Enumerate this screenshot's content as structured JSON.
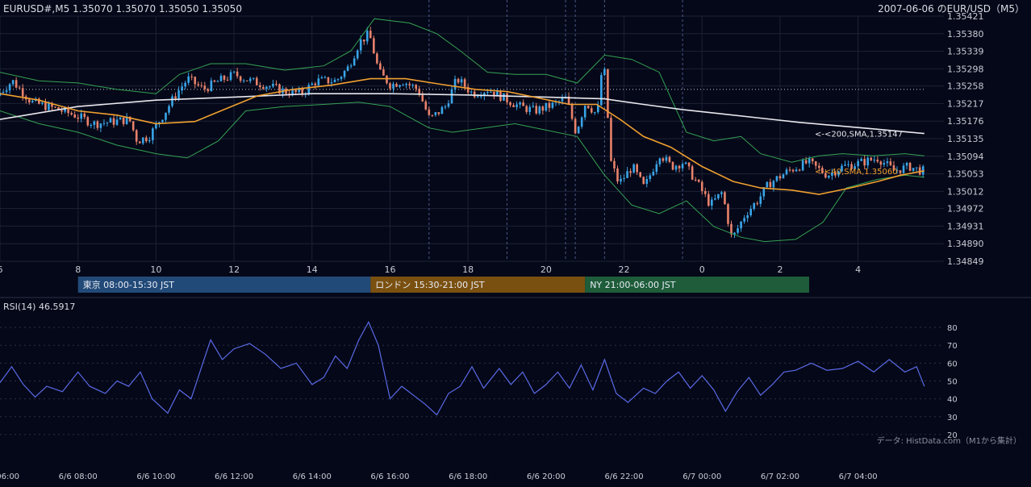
{
  "header": {
    "symbol_info": "EURUSD#,M5 1.35070 1.35070 1.35050 1.35050",
    "date_title": "2007-06-06 のEUR/USD（M5）"
  },
  "colors": {
    "background": "#050818",
    "grid": "#1c2236",
    "bull": "#3aa5e8",
    "bear": "#e8826b",
    "sma40": "#f0a030",
    "sma200": "#e8e8ee",
    "bollinger": "#35a255",
    "rsi": "#5a6ae8",
    "tokyo": "#224a78",
    "london": "#7a5010",
    "ny": "#1e5c3a"
  },
  "chart_data": [
    {
      "type": "candlestick",
      "timeframe": "M5",
      "ylim": [
        1.34849,
        1.35421
      ],
      "y_ticks": [
        "1.35421",
        "1.35380",
        "1.35339",
        "1.35298",
        "1.35258",
        "1.35217",
        "1.35176",
        "1.35135",
        "1.35094",
        "1.35053",
        "1.35012",
        "1.34972",
        "1.34931",
        "1.34890",
        "1.34849"
      ],
      "x_ticks": [
        "6",
        "8",
        "10",
        "12",
        "14",
        "16",
        "18",
        "20",
        "22",
        "0",
        "2",
        "4"
      ],
      "x_tick_hours": [
        6,
        8,
        10,
        12,
        14,
        16,
        18,
        20,
        22,
        24,
        26,
        28
      ],
      "x_range_hours": [
        6,
        29.7
      ],
      "dotted_reference_level": 1.3525,
      "vertical_markers_hours": [
        17.0,
        19.0,
        20.5,
        20.75,
        21.5,
        23.5
      ],
      "anchors": [
        [
          6.0,
          1.35235
        ],
        [
          6.4,
          1.3527
        ],
        [
          6.9,
          1.3522
        ],
        [
          7.5,
          1.35205
        ],
        [
          8.0,
          1.3519
        ],
        [
          8.5,
          1.3517
        ],
        [
          9.0,
          1.35175
        ],
        [
          9.4,
          1.3518
        ],
        [
          9.6,
          1.3513
        ],
        [
          9.9,
          1.3514
        ],
        [
          10.3,
          1.35195
        ],
        [
          10.6,
          1.3524
        ],
        [
          10.9,
          1.35275
        ],
        [
          11.3,
          1.3525
        ],
        [
          11.7,
          1.3527
        ],
        [
          12.1,
          1.35285
        ],
        [
          12.5,
          1.3527
        ],
        [
          12.9,
          1.3526
        ],
        [
          13.4,
          1.35245
        ],
        [
          13.8,
          1.3524
        ],
        [
          14.2,
          1.3527
        ],
        [
          14.7,
          1.3527
        ],
        [
          15.0,
          1.353
        ],
        [
          15.3,
          1.3536
        ],
        [
          15.55,
          1.3538
        ],
        [
          15.8,
          1.3529
        ],
        [
          16.1,
          1.3526
        ],
        [
          16.4,
          1.3527
        ],
        [
          16.8,
          1.3525
        ],
        [
          17.1,
          1.3518
        ],
        [
          17.5,
          1.3521
        ],
        [
          17.8,
          1.35275
        ],
        [
          18.2,
          1.3524
        ],
        [
          18.6,
          1.3525
        ],
        [
          19.0,
          1.3523
        ],
        [
          19.4,
          1.3521
        ],
        [
          19.8,
          1.352
        ],
        [
          20.3,
          1.35215
        ],
        [
          20.6,
          1.3523
        ],
        [
          20.85,
          1.3515
        ],
        [
          21.1,
          1.3522
        ],
        [
          21.4,
          1.3519
        ],
        [
          21.55,
          1.3533
        ],
        [
          21.75,
          1.3508
        ],
        [
          21.95,
          1.3503
        ],
        [
          22.3,
          1.3507
        ],
        [
          22.6,
          1.3502
        ],
        [
          23.0,
          1.351
        ],
        [
          23.3,
          1.3507
        ],
        [
          23.6,
          1.3508
        ],
        [
          23.9,
          1.3504
        ],
        [
          24.3,
          1.3498
        ],
        [
          24.6,
          1.3501
        ],
        [
          24.85,
          1.349
        ],
        [
          25.2,
          1.3496
        ],
        [
          25.5,
          1.3499
        ],
        [
          25.8,
          1.3503
        ],
        [
          26.3,
          1.3506
        ],
        [
          26.8,
          1.3508
        ],
        [
          27.3,
          1.3505
        ],
        [
          27.7,
          1.3507
        ],
        [
          28.2,
          1.3508
        ],
        [
          28.6,
          1.3509
        ],
        [
          29.0,
          1.3506
        ],
        [
          29.4,
          1.3507
        ],
        [
          29.7,
          1.3506
        ]
      ]
    },
    {
      "type": "line",
      "name": "<-<40,SMA,1.35060",
      "series_label": "<-<40,SMA,1.35060",
      "points": [
        [
          6.0,
          1.3524
        ],
        [
          7.0,
          1.35225
        ],
        [
          8.0,
          1.352
        ],
        [
          9.0,
          1.3519
        ],
        [
          10.0,
          1.3517
        ],
        [
          11.0,
          1.35175
        ],
        [
          11.8,
          1.35205
        ],
        [
          12.6,
          1.35235
        ],
        [
          13.5,
          1.3525
        ],
        [
          14.5,
          1.3526
        ],
        [
          15.5,
          1.35275
        ],
        [
          16.4,
          1.35275
        ],
        [
          17.3,
          1.35262
        ],
        [
          18.2,
          1.3525
        ],
        [
          19.0,
          1.35245
        ],
        [
          19.8,
          1.3523
        ],
        [
          20.6,
          1.35215
        ],
        [
          21.3,
          1.35215
        ],
        [
          21.9,
          1.3518
        ],
        [
          22.5,
          1.3514
        ],
        [
          23.2,
          1.35115
        ],
        [
          24.0,
          1.3507
        ],
        [
          24.8,
          1.35035
        ],
        [
          25.5,
          1.3502
        ],
        [
          26.3,
          1.35015
        ],
        [
          27.0,
          1.35005
        ],
        [
          27.8,
          1.3502
        ],
        [
          28.5,
          1.35035
        ],
        [
          29.1,
          1.3505
        ],
        [
          29.7,
          1.3506
        ]
      ]
    },
    {
      "type": "line",
      "name": "<-<200,SMA,1.35147",
      "series_label": "<-<200,SMA,1.35147",
      "points": [
        [
          6.0,
          1.3518
        ],
        [
          8.0,
          1.3521
        ],
        [
          10.0,
          1.35225
        ],
        [
          12.0,
          1.35232
        ],
        [
          14.0,
          1.3524
        ],
        [
          16.0,
          1.3524
        ],
        [
          18.0,
          1.35237
        ],
        [
          20.0,
          1.35232
        ],
        [
          21.5,
          1.35228
        ],
        [
          22.5,
          1.35215
        ],
        [
          23.5,
          1.35203
        ],
        [
          24.5,
          1.35193
        ],
        [
          25.5,
          1.35183
        ],
        [
          26.5,
          1.35173
        ],
        [
          27.5,
          1.35165
        ],
        [
          28.5,
          1.35157
        ],
        [
          29.7,
          1.35147
        ]
      ]
    },
    {
      "type": "line",
      "name": "bollinger_upper",
      "points": [
        [
          6.0,
          1.3529
        ],
        [
          7.0,
          1.3527
        ],
        [
          8.0,
          1.35265
        ],
        [
          9.0,
          1.3525
        ],
        [
          10.0,
          1.3524
        ],
        [
          10.6,
          1.35285
        ],
        [
          11.4,
          1.3531
        ],
        [
          12.3,
          1.3531
        ],
        [
          13.3,
          1.35295
        ],
        [
          14.3,
          1.35305
        ],
        [
          15.0,
          1.3534
        ],
        [
          15.6,
          1.35415
        ],
        [
          16.5,
          1.35405
        ],
        [
          17.2,
          1.3538
        ],
        [
          17.8,
          1.3534
        ],
        [
          18.5,
          1.3529
        ],
        [
          19.2,
          1.35285
        ],
        [
          20.0,
          1.35285
        ],
        [
          20.8,
          1.35265
        ],
        [
          21.5,
          1.3533
        ],
        [
          22.2,
          1.3532
        ],
        [
          22.9,
          1.3529
        ],
        [
          23.6,
          1.3515
        ],
        [
          24.3,
          1.3513
        ],
        [
          25.0,
          1.3514
        ],
        [
          25.5,
          1.351
        ],
        [
          26.3,
          1.3508
        ],
        [
          27.0,
          1.35095
        ],
        [
          27.6,
          1.351
        ],
        [
          28.4,
          1.35095
        ],
        [
          29.2,
          1.351
        ],
        [
          29.7,
          1.35095
        ]
      ]
    },
    {
      "type": "line",
      "name": "bollinger_lower",
      "points": [
        [
          6.0,
          1.352
        ],
        [
          7.0,
          1.3517
        ],
        [
          8.0,
          1.3515
        ],
        [
          9.0,
          1.3512
        ],
        [
          10.0,
          1.351
        ],
        [
          10.8,
          1.3509
        ],
        [
          11.6,
          1.3513
        ],
        [
          12.3,
          1.352
        ],
        [
          13.3,
          1.3521
        ],
        [
          14.3,
          1.35215
        ],
        [
          15.2,
          1.3522
        ],
        [
          16.0,
          1.3521
        ],
        [
          17.0,
          1.3516
        ],
        [
          17.6,
          1.3515
        ],
        [
          18.4,
          1.3516
        ],
        [
          19.2,
          1.3517
        ],
        [
          20.0,
          1.35155
        ],
        [
          20.8,
          1.3514
        ],
        [
          21.5,
          1.3505
        ],
        [
          22.2,
          1.3498
        ],
        [
          22.9,
          1.3496
        ],
        [
          23.6,
          1.3499
        ],
        [
          24.3,
          1.3493
        ],
        [
          25.0,
          1.34905
        ],
        [
          25.6,
          1.34895
        ],
        [
          26.4,
          1.349
        ],
        [
          27.1,
          1.3494
        ],
        [
          27.7,
          1.3502
        ],
        [
          28.5,
          1.3504
        ],
        [
          29.2,
          1.3505
        ],
        [
          29.7,
          1.35045
        ]
      ]
    },
    {
      "type": "line",
      "title": "RSI(14) 46.5917",
      "ylim": [
        15,
        85
      ],
      "y_ticks": [
        "80",
        "70",
        "60",
        "50",
        "40",
        "30",
        "20"
      ],
      "x_ticks": [
        "6/6 06:00",
        "6/6 08:00",
        "6/6 10:00",
        "6/6 12:00",
        "6/6 14:00",
        "6/6 16:00",
        "6/6 18:00",
        "6/6 20:00",
        "6/6 22:00",
        "6/7 00:00",
        "6/7 02:00",
        "6/7 04:00"
      ],
      "points": [
        [
          6.0,
          49
        ],
        [
          6.3,
          58
        ],
        [
          6.6,
          48
        ],
        [
          6.9,
          41
        ],
        [
          7.2,
          47
        ],
        [
          7.6,
          44
        ],
        [
          8.0,
          55
        ],
        [
          8.3,
          47
        ],
        [
          8.7,
          43
        ],
        [
          9.0,
          50
        ],
        [
          9.3,
          47
        ],
        [
          9.6,
          55
        ],
        [
          9.9,
          40
        ],
        [
          10.3,
          32
        ],
        [
          10.6,
          45
        ],
        [
          10.9,
          40
        ],
        [
          11.2,
          60
        ],
        [
          11.4,
          73
        ],
        [
          11.7,
          62
        ],
        [
          12.0,
          68
        ],
        [
          12.4,
          71
        ],
        [
          12.8,
          65
        ],
        [
          13.2,
          57
        ],
        [
          13.6,
          60
        ],
        [
          14.0,
          48
        ],
        [
          14.3,
          52
        ],
        [
          14.6,
          64
        ],
        [
          14.9,
          57
        ],
        [
          15.2,
          73
        ],
        [
          15.45,
          83
        ],
        [
          15.7,
          70
        ],
        [
          16.0,
          40
        ],
        [
          16.3,
          47
        ],
        [
          16.6,
          42
        ],
        [
          16.9,
          37
        ],
        [
          17.2,
          31
        ],
        [
          17.5,
          43
        ],
        [
          17.8,
          47
        ],
        [
          18.1,
          58
        ],
        [
          18.4,
          46
        ],
        [
          18.8,
          57
        ],
        [
          19.1,
          48
        ],
        [
          19.4,
          55
        ],
        [
          19.7,
          43
        ],
        [
          20.0,
          48
        ],
        [
          20.3,
          55
        ],
        [
          20.6,
          46
        ],
        [
          20.9,
          59
        ],
        [
          21.2,
          45
        ],
        [
          21.5,
          62
        ],
        [
          21.8,
          43
        ],
        [
          22.1,
          38
        ],
        [
          22.5,
          46
        ],
        [
          22.8,
          43
        ],
        [
          23.1,
          50
        ],
        [
          23.4,
          55
        ],
        [
          23.7,
          46
        ],
        [
          24.0,
          53
        ],
        [
          24.3,
          45
        ],
        [
          24.6,
          33
        ],
        [
          24.9,
          44
        ],
        [
          25.2,
          52
        ],
        [
          25.5,
          42
        ],
        [
          25.8,
          48
        ],
        [
          26.1,
          55
        ],
        [
          26.4,
          56
        ],
        [
          26.8,
          60
        ],
        [
          27.2,
          56
        ],
        [
          27.6,
          57
        ],
        [
          28.0,
          61
        ],
        [
          28.4,
          55
        ],
        [
          28.8,
          62
        ],
        [
          29.2,
          55
        ],
        [
          29.5,
          58
        ],
        [
          29.7,
          47
        ]
      ]
    }
  ],
  "sessions": [
    {
      "label": "東京 08:00-15:30 JST",
      "start_hour": 8,
      "end_hour": 15.5,
      "color": "#224a78"
    },
    {
      "label": "ロンドン 15:30-21:00 JST",
      "start_hour": 15.5,
      "end_hour": 21,
      "color": "#7a5010"
    },
    {
      "label": "NY 21:00-06:00 JST",
      "start_hour": 21,
      "end_hour": 30,
      "color": "#1e5c3a"
    }
  ],
  "footer": {
    "source": "データ: HistData.com（M1から集計）"
  }
}
